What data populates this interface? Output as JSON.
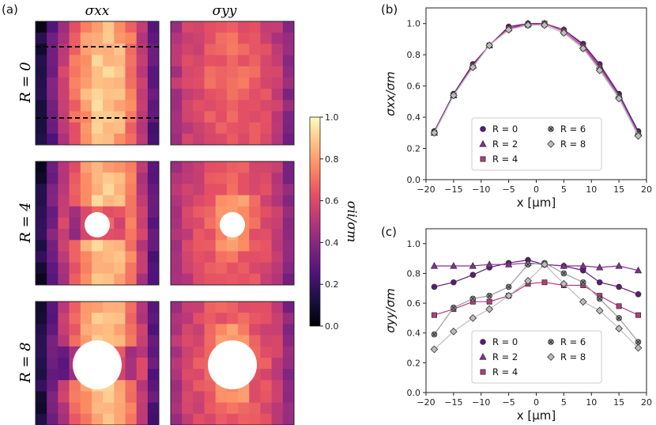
{
  "figure": {
    "panel_labels": [
      "(a)",
      "(b)",
      "(c)"
    ],
    "heatmap_columns": [
      "σxx",
      "σyy"
    ],
    "heatmap_rows": [
      "R = 0",
      "R = 4",
      "R = 8"
    ]
  },
  "chart_data": [
    {
      "id": "a",
      "type": "heatmap",
      "title": "",
      "column_labels": [
        "σxx",
        "σyy"
      ],
      "row_labels": [
        "R = 0",
        "R = 4",
        "R = 8"
      ],
      "colorbar": {
        "label": "σii/σm",
        "range": [
          0.0,
          1.0
        ],
        "ticks": [
          "0.0",
          "0.2",
          "0.4",
          "0.6",
          "0.8",
          "1.0"
        ],
        "colormap": "magma"
      },
      "grid": [
        11,
        11
      ],
      "hole_radius": [
        0,
        4,
        8
      ],
      "dashed_lines_on": "R = 0, σxx",
      "sigma_xx_column_profile": [
        0.15,
        0.35,
        0.55,
        0.7,
        0.82,
        0.9,
        0.9,
        0.86,
        0.74,
        0.55,
        0.3
      ],
      "sigma_yy_column_profile": [
        0.5,
        0.58,
        0.62,
        0.66,
        0.68,
        0.7,
        0.68,
        0.66,
        0.62,
        0.55,
        0.42
      ]
    },
    {
      "id": "b",
      "type": "line",
      "xlabel": "x [μm]",
      "ylabel": "σxx/σm",
      "xlim": [
        -20,
        20
      ],
      "ylim": [
        0.0,
        1.1
      ],
      "xticks": [
        "−20",
        "−15",
        "−10",
        "−5",
        "0",
        "5",
        "10",
        "15",
        "20"
      ],
      "yticks": [
        "0.0",
        "0.2",
        "0.4",
        "0.6",
        "0.8",
        "1.0"
      ],
      "x": [
        -18.5,
        -15,
        -11.5,
        -8.5,
        -5,
        -1.5,
        1.5,
        5,
        8.5,
        11.5,
        15,
        18.5
      ],
      "legend": {
        "location": "lower-center",
        "ncol": 2
      },
      "series": [
        {
          "name": "R = 0",
          "marker": "circle",
          "color": "#5c1a78",
          "values": [
            0.31,
            0.55,
            0.74,
            0.86,
            0.98,
            1.0,
            1.0,
            0.96,
            0.87,
            0.74,
            0.55,
            0.31
          ]
        },
        {
          "name": "R = 2",
          "marker": "triangle",
          "color": "#8b2a9e",
          "values": [
            0.3,
            0.54,
            0.73,
            0.86,
            0.97,
            1.0,
            1.0,
            0.96,
            0.86,
            0.73,
            0.54,
            0.3
          ]
        },
        {
          "name": "R = 4",
          "marker": "square",
          "color": "#b43c7e",
          "values": [
            0.3,
            0.54,
            0.73,
            0.86,
            0.97,
            0.99,
            1.0,
            0.95,
            0.85,
            0.72,
            0.53,
            0.29
          ]
        },
        {
          "name": "R = 6",
          "marker": "x-circle",
          "color": "#9a9a9a",
          "values": [
            0.3,
            0.54,
            0.72,
            0.86,
            0.96,
            0.99,
            0.99,
            0.94,
            0.84,
            0.71,
            0.53,
            0.29
          ]
        },
        {
          "name": "R = 8",
          "marker": "diamond",
          "color": "#bdbdbd",
          "values": [
            0.3,
            0.54,
            0.72,
            0.86,
            0.96,
            0.99,
            0.99,
            0.94,
            0.84,
            0.7,
            0.52,
            0.28
          ]
        }
      ]
    },
    {
      "id": "c",
      "type": "line",
      "xlabel": "x [μm]",
      "ylabel": "σyy/σm",
      "xlim": [
        -20,
        20
      ],
      "ylim": [
        0.0,
        1.1
      ],
      "xticks": [
        "−20",
        "−15",
        "−10",
        "−5",
        "0",
        "5",
        "10",
        "15",
        "20"
      ],
      "yticks": [
        "0.0",
        "0.2",
        "0.4",
        "0.6",
        "0.8",
        "1.0"
      ],
      "x": [
        -18.5,
        -15,
        -11.5,
        -8.5,
        -5,
        -1.5,
        1.5,
        5,
        8.5,
        11.5,
        15,
        18.5
      ],
      "legend": {
        "location": "lower-center",
        "ncol": 2
      },
      "series": [
        {
          "name": "R = 0",
          "marker": "circle",
          "color": "#5c1a78",
          "values": [
            0.71,
            0.74,
            0.79,
            0.84,
            0.87,
            0.89,
            0.86,
            0.85,
            0.82,
            0.74,
            0.71,
            0.66
          ]
        },
        {
          "name": "R = 2",
          "marker": "triangle",
          "color": "#8b2a9e",
          "values": [
            0.85,
            0.85,
            0.85,
            0.86,
            0.86,
            0.87,
            0.86,
            0.85,
            0.85,
            0.84,
            0.85,
            0.82
          ]
        },
        {
          "name": "R = 4",
          "marker": "square",
          "color": "#b43c7e",
          "values": [
            0.52,
            0.56,
            0.61,
            0.61,
            0.65,
            0.73,
            0.74,
            0.72,
            0.72,
            0.65,
            0.58,
            0.52
          ]
        },
        {
          "name": "R = 6",
          "marker": "x-circle",
          "color": "#9a9a9a",
          "values": [
            0.39,
            0.57,
            0.63,
            0.65,
            0.71,
            0.86,
            0.87,
            0.8,
            0.74,
            0.63,
            0.5,
            0.34
          ]
        },
        {
          "name": "R = 8",
          "marker": "diamond",
          "color": "#bdbdbd",
          "values": [
            0.29,
            0.41,
            0.5,
            0.56,
            0.65,
            0.75,
            0.86,
            0.73,
            0.61,
            0.55,
            0.43,
            0.3
          ]
        }
      ]
    }
  ]
}
